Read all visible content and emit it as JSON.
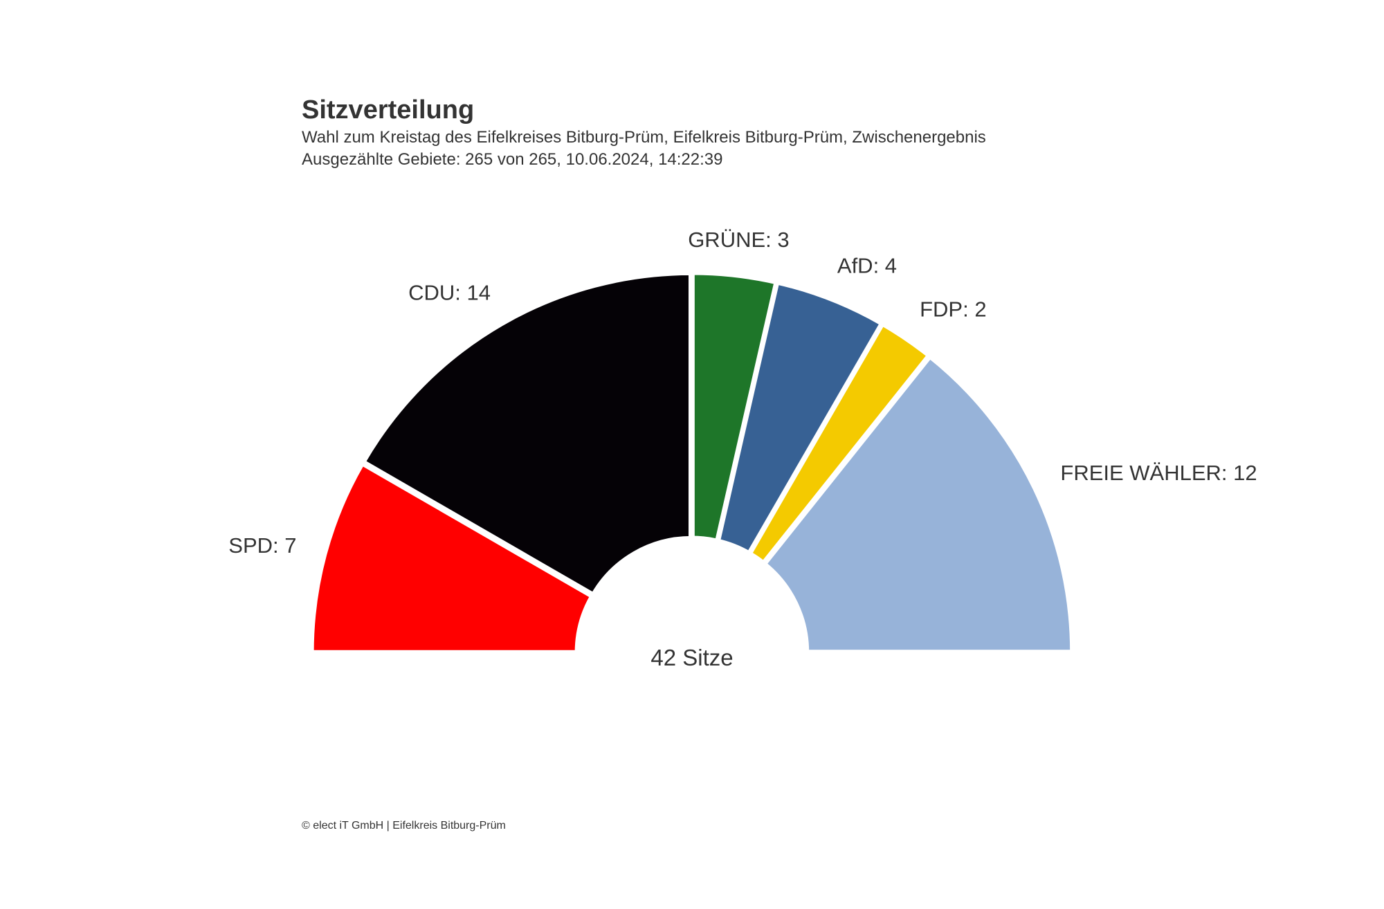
{
  "chart_data": {
    "type": "pie",
    "variant": "semicircle-parliament",
    "title": "Sitzverteilung",
    "subtitle_lines": [
      "Wahl zum Kreistag des Eifelkreises Bitburg-Prüm, Eifelkreis Bitburg-Prüm, Zwischenergebnis",
      "Ausgezählte Gebiete: 265 von 265, 10.06.2024, 14:22:39"
    ],
    "center_label": "42 Sitze",
    "total": 42,
    "slices": [
      {
        "name": "SPD",
        "value": 7,
        "label": "SPD: 7",
        "color": "#ff0000"
      },
      {
        "name": "CDU",
        "value": 14,
        "label": "CDU: 14",
        "color": "#050206"
      },
      {
        "name": "GRÜNE",
        "value": 3,
        "label": "GRÜNE: 3",
        "color": "#1e7629"
      },
      {
        "name": "AfD",
        "value": 4,
        "label": "AfD: 4",
        "color": "#376194"
      },
      {
        "name": "FDP",
        "value": 2,
        "label": "FDP: 2",
        "color": "#f4ca00"
      },
      {
        "name": "FREIE WÄHLER",
        "value": 12,
        "label": "FREIE WÄHLER: 12",
        "color": "#97b3d9"
      }
    ],
    "credits": "© elect iT GmbH | Eifelkreis Bitburg-Prüm"
  }
}
